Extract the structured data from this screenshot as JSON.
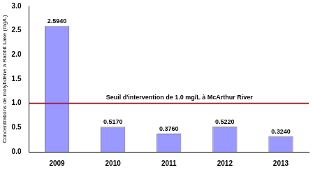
{
  "chart_data": {
    "type": "bar",
    "y_label": "Concentrations de molybdène à Rabbit Lake (mg/L)",
    "categories": [
      "2009",
      "2010",
      "2011",
      "2012",
      "2013"
    ],
    "values": [
      2.594,
      0.517,
      0.376,
      0.522,
      0.324
    ],
    "value_labels": [
      "2.5940",
      "0.5170",
      "0.3760",
      "0.5220",
      "0.3240"
    ],
    "data_labels": true,
    "color": "#9999ff",
    "ylim": [
      0,
      3
    ],
    "yticks": [
      {
        "value": 0,
        "label": "0.0"
      },
      0.5,
      {
        "value": 1,
        "label": "1.0"
      },
      1.5,
      {
        "value": 2,
        "label": "2.0"
      },
      2.5,
      {
        "value": 3,
        "label": "3.0"
      }
    ],
    "grid": false,
    "annotations": [
      {
        "text": "Seuil d'intervention de 1.0 mg/L à McArthur River",
        "y": 1,
        "color": "#ff0000"
      }
    ]
  }
}
